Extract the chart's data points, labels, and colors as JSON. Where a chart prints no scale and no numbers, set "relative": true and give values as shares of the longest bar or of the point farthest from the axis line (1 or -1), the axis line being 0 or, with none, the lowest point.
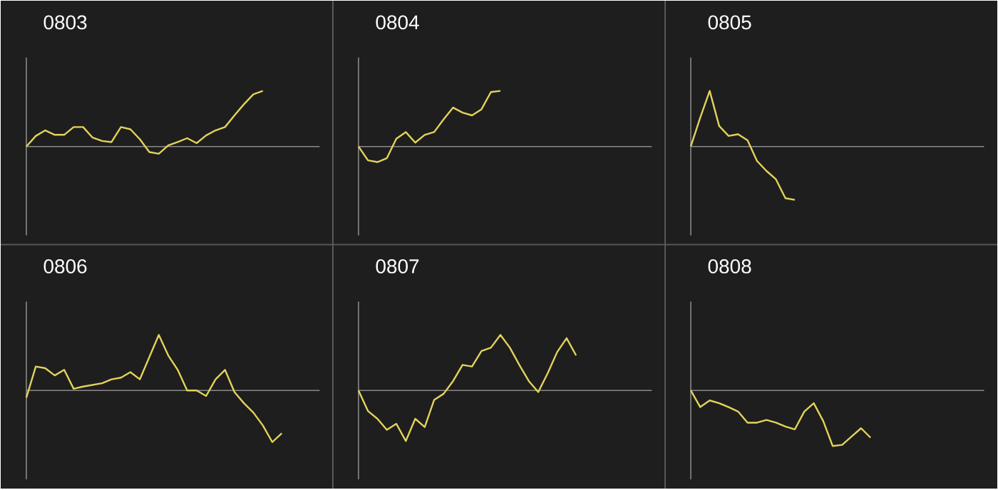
{
  "chart_data": [
    {
      "type": "line",
      "title": "0803",
      "relative": true,
      "color": "#e3d35a",
      "categories": [
        null,
        null,
        null,
        null,
        null,
        null,
        null,
        null,
        null,
        null,
        null,
        null,
        null,
        null,
        null,
        null,
        null,
        null,
        null,
        null,
        null,
        null,
        null,
        null,
        null,
        null,
        null,
        null,
        null,
        null,
        null,
        null
      ],
      "values": [
        0,
        0.19,
        0.29,
        0.21,
        0.21,
        0.35,
        0.35,
        0.16,
        0.1,
        0.08,
        0.35,
        0.31,
        0.13,
        -0.1,
        -0.13,
        0.02,
        0.08,
        0.15,
        0.06,
        0.2,
        0.29,
        0.35,
        0.56,
        0.76,
        0.94,
        1,
        null,
        null,
        null,
        null,
        null,
        null
      ]
    },
    {
      "type": "line",
      "title": "0804",
      "relative": true,
      "color": "#e3d35a",
      "categories": [
        null,
        null,
        null,
        null,
        null,
        null,
        null,
        null,
        null,
        null,
        null,
        null,
        null,
        null,
        null,
        null,
        null,
        null,
        null,
        null,
        null,
        null,
        null,
        null,
        null,
        null,
        null,
        null,
        null,
        null,
        null,
        null
      ],
      "values": [
        0,
        -0.25,
        -0.28,
        -0.21,
        0.14,
        0.26,
        0.07,
        0.21,
        0.26,
        0.49,
        0.7,
        0.61,
        0.56,
        0.67,
        0.98,
        1,
        null,
        null,
        null,
        null,
        null,
        null,
        null,
        null,
        null,
        null,
        null,
        null,
        null,
        null,
        null,
        null
      ]
    },
    {
      "type": "line",
      "title": "0805",
      "relative": true,
      "color": "#e3d35a",
      "categories": [
        null,
        null,
        null,
        null,
        null,
        null,
        null,
        null,
        null,
        null,
        null,
        null,
        null,
        null,
        null,
        null,
        null,
        null,
        null,
        null,
        null,
        null,
        null,
        null,
        null,
        null,
        null,
        null,
        null,
        null,
        null,
        null
      ],
      "values": [
        0,
        0.52,
        1,
        0.37,
        0.19,
        0.22,
        0.11,
        -0.26,
        -0.44,
        -0.59,
        -0.93,
        -0.96,
        null,
        null,
        null,
        null,
        null,
        null,
        null,
        null,
        null,
        null,
        null,
        null,
        null,
        null,
        null,
        null,
        null,
        null,
        null,
        null
      ]
    },
    {
      "type": "line",
      "title": "0806",
      "relative": true,
      "color": "#e3d35a",
      "categories": [
        null,
        null,
        null,
        null,
        null,
        null,
        null,
        null,
        null,
        null,
        null,
        null,
        null,
        null,
        null,
        null,
        null,
        null,
        null,
        null,
        null,
        null,
        null,
        null,
        null,
        null,
        null,
        null,
        null,
        null,
        null,
        null
      ],
      "values": [
        -0.13,
        0.43,
        0.4,
        0.27,
        0.37,
        0.03,
        0.07,
        0.1,
        0.13,
        0.2,
        0.23,
        0.33,
        0.2,
        0.6,
        1,
        0.63,
        0.37,
        0,
        0,
        -0.1,
        0.2,
        0.37,
        -0.03,
        -0.23,
        -0.4,
        -0.63,
        -0.93,
        -0.77,
        null,
        null,
        null,
        null
      ]
    },
    {
      "type": "line",
      "title": "0807",
      "relative": true,
      "color": "#e3d35a",
      "categories": [
        null,
        null,
        null,
        null,
        null,
        null,
        null,
        null,
        null,
        null,
        null,
        null,
        null,
        null,
        null,
        null,
        null,
        null,
        null,
        null,
        null,
        null,
        null,
        null,
        null,
        null,
        null,
        null,
        null,
        null,
        null,
        null
      ],
      "values": [
        0,
        -0.37,
        -0.51,
        -0.71,
        -0.6,
        -0.91,
        -0.51,
        -0.66,
        -0.17,
        -0.06,
        0.17,
        0.46,
        0.43,
        0.71,
        0.77,
        1,
        0.77,
        0.46,
        0.17,
        -0.03,
        0.31,
        0.69,
        0.94,
        0.63,
        null,
        null,
        null,
        null,
        null,
        null,
        null,
        null
      ]
    },
    {
      "type": "line",
      "title": "0808",
      "relative": true,
      "color": "#e3d35a",
      "categories": [
        null,
        null,
        null,
        null,
        null,
        null,
        null,
        null,
        null,
        null,
        null,
        null,
        null,
        null,
        null,
        null,
        null,
        null,
        null,
        null,
        null,
        null,
        null,
        null,
        null,
        null,
        null,
        null,
        null,
        null,
        null,
        null
      ],
      "values": [
        0,
        -0.3,
        -0.18,
        -0.23,
        -0.3,
        -0.38,
        -0.58,
        -0.58,
        -0.53,
        -0.58,
        -0.65,
        -0.7,
        -0.38,
        -0.23,
        -0.55,
        -1,
        -0.98,
        -0.83,
        -0.68,
        -0.85,
        null,
        null,
        null,
        null,
        null,
        null,
        null,
        null,
        null,
        null,
        null,
        null
      ]
    }
  ]
}
